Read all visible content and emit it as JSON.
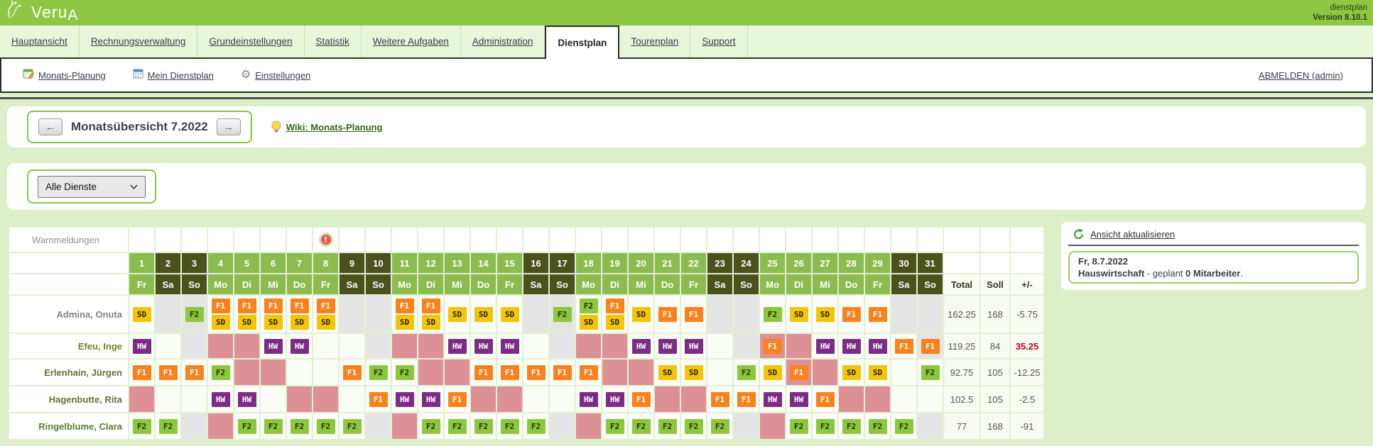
{
  "header": {
    "logo": "Veru",
    "logo_a": "A",
    "app_label": "dienstplan",
    "version": "Version 8.10.1"
  },
  "tabs": [
    {
      "label": "Hauptansicht",
      "active": false
    },
    {
      "label": "Rechnungsverwaltung",
      "active": false
    },
    {
      "label": "Grundeinstellungen",
      "active": false
    },
    {
      "label": "Statistik",
      "active": false
    },
    {
      "label": "Weitere Aufgaben",
      "active": false
    },
    {
      "label": "Administration",
      "active": false
    },
    {
      "label": "Dienstplan",
      "active": true
    },
    {
      "label": "Tourenplan",
      "active": false
    },
    {
      "label": "Support",
      "active": false
    }
  ],
  "subnav": {
    "items": [
      {
        "label": "Monats-Planung",
        "icon": "calendar-edit-icon"
      },
      {
        "label": "Mein Dienstplan",
        "icon": "calendar-icon"
      },
      {
        "label": "Einstellungen",
        "icon": "gear-icon"
      }
    ],
    "logout": "ABMELDEN (admin)"
  },
  "month_nav": {
    "title": "Monatsübersicht 7.2022",
    "prev_arrow": "←",
    "next_arrow": "→",
    "wiki_link": "Wiki: Monats-Planung"
  },
  "filter": {
    "selected": "Alle Dienste"
  },
  "roster": {
    "warn_label": "Warnmeldungen",
    "warning_day": 8,
    "warning_glyph": "!",
    "totals_headers": [
      "Total",
      "Soll",
      "+/-"
    ],
    "days": [
      {
        "num": "1",
        "dow": "Fr",
        "we": false
      },
      {
        "num": "2",
        "dow": "Sa",
        "we": true
      },
      {
        "num": "3",
        "dow": "So",
        "we": true
      },
      {
        "num": "4",
        "dow": "Mo",
        "we": false
      },
      {
        "num": "5",
        "dow": "Di",
        "we": false
      },
      {
        "num": "6",
        "dow": "Mi",
        "we": false
      },
      {
        "num": "7",
        "dow": "Do",
        "we": false
      },
      {
        "num": "8",
        "dow": "Fr",
        "we": false
      },
      {
        "num": "9",
        "dow": "Sa",
        "we": true
      },
      {
        "num": "10",
        "dow": "So",
        "we": true
      },
      {
        "num": "11",
        "dow": "Mo",
        "we": false
      },
      {
        "num": "12",
        "dow": "Di",
        "we": false
      },
      {
        "num": "13",
        "dow": "Mi",
        "we": false
      },
      {
        "num": "14",
        "dow": "Do",
        "we": false
      },
      {
        "num": "15",
        "dow": "Fr",
        "we": false
      },
      {
        "num": "16",
        "dow": "Sa",
        "we": true
      },
      {
        "num": "17",
        "dow": "So",
        "we": true
      },
      {
        "num": "18",
        "dow": "Mo",
        "we": false
      },
      {
        "num": "19",
        "dow": "Di",
        "we": false
      },
      {
        "num": "20",
        "dow": "Mi",
        "we": false
      },
      {
        "num": "21",
        "dow": "Do",
        "we": false
      },
      {
        "num": "22",
        "dow": "Fr",
        "we": false
      },
      {
        "num": "23",
        "dow": "Sa",
        "we": true
      },
      {
        "num": "24",
        "dow": "So",
        "we": true
      },
      {
        "num": "25",
        "dow": "Mo",
        "we": false
      },
      {
        "num": "26",
        "dow": "Di",
        "we": false
      },
      {
        "num": "27",
        "dow": "Mi",
        "we": false
      },
      {
        "num": "28",
        "dow": "Do",
        "we": false
      },
      {
        "num": "29",
        "dow": "Fr",
        "we": false
      },
      {
        "num": "30",
        "dow": "Sa",
        "we": true
      },
      {
        "num": "31",
        "dow": "So",
        "we": true
      }
    ],
    "shift_colors": {
      "SD": {
        "bg": "#f2c40c",
        "fg": "#2a2000"
      },
      "F1": {
        "bg": "#f8821f",
        "fg": "#ffffff"
      },
      "F2": {
        "bg": "#8dc63f",
        "fg": "#243300"
      },
      "HW": {
        "bg": "#7d2c86",
        "fg": "#ffffff"
      }
    },
    "cell_bg": {
      "w": "#fbfdf7",
      "g": "#e4e4e4",
      "p": "#dd9095"
    },
    "employees": [
      {
        "name": "Admina, Onuta",
        "name_color": "#85857b",
        "tall": true,
        "cells": [
          [
            "SD",
            "w"
          ],
          [
            "",
            "g"
          ],
          [
            "F2",
            "g"
          ],
          [
            "F1+SD",
            "w"
          ],
          [
            "F1+SD",
            "w"
          ],
          [
            "F1+SD",
            "w"
          ],
          [
            "F1+SD",
            "w"
          ],
          [
            "F1+SD",
            "w"
          ],
          [
            "",
            "g"
          ],
          [
            "",
            "g"
          ],
          [
            "F1+SD",
            "w"
          ],
          [
            "F1+SD",
            "w"
          ],
          [
            "SD",
            "w"
          ],
          [
            "SD",
            "w"
          ],
          [
            "SD",
            "w"
          ],
          [
            "",
            "g"
          ],
          [
            "F2",
            "g"
          ],
          [
            "F2+SD",
            "w"
          ],
          [
            "F1+SD",
            "w"
          ],
          [
            "SD",
            "w"
          ],
          [
            "F1",
            "w"
          ],
          [
            "F1",
            "w"
          ],
          [
            "",
            "g"
          ],
          [
            "",
            "g"
          ],
          [
            "F2",
            "w"
          ],
          [
            "SD",
            "w"
          ],
          [
            "SD",
            "w"
          ],
          [
            "F1",
            "w"
          ],
          [
            "F1",
            "w"
          ],
          [
            "",
            "g"
          ],
          [
            "",
            "g"
          ]
        ],
        "total": "162.25",
        "soll": "168",
        "diff": "-5.75",
        "diff_alert": false
      },
      {
        "name": "Efeu, Inge",
        "name_color": "#7c7c2e",
        "tall": false,
        "cells": [
          [
            "HW",
            "w"
          ],
          [
            "",
            "w"
          ],
          [
            "",
            "g"
          ],
          [
            "",
            "p"
          ],
          [
            "",
            "p"
          ],
          [
            "HW",
            "w"
          ],
          [
            "HW",
            "w"
          ],
          [
            "",
            "w"
          ],
          [
            "",
            "w"
          ],
          [
            "",
            "g"
          ],
          [
            "",
            "p"
          ],
          [
            "",
            "p"
          ],
          [
            "HW",
            "w"
          ],
          [
            "HW",
            "w"
          ],
          [
            "HW",
            "w"
          ],
          [
            "",
            "w"
          ],
          [
            "",
            "g"
          ],
          [
            "",
            "p"
          ],
          [
            "",
            "p"
          ],
          [
            "HW",
            "w"
          ],
          [
            "HW",
            "w"
          ],
          [
            "HW",
            "w"
          ],
          [
            "",
            "w"
          ],
          [
            "",
            "g"
          ],
          [
            "F1",
            "p"
          ],
          [
            "",
            "p"
          ],
          [
            "HW",
            "w"
          ],
          [
            "HW",
            "w"
          ],
          [
            "HW",
            "w"
          ],
          [
            "F1",
            "w"
          ],
          [
            "F1",
            "g"
          ]
        ],
        "total": "119.25",
        "soll": "84",
        "diff": "35.25",
        "diff_alert": true
      },
      {
        "name": "Erlenhain, Jürgen",
        "name_color": "#6d6d3c",
        "tall": false,
        "cells": [
          [
            "F1",
            "w"
          ],
          [
            "F1",
            "w"
          ],
          [
            "F1",
            "w"
          ],
          [
            "F2",
            "w"
          ],
          [
            "",
            "p"
          ],
          [
            "",
            "p"
          ],
          [
            "",
            "w"
          ],
          [
            "",
            "w"
          ],
          [
            "F1",
            "w"
          ],
          [
            "F2",
            "w"
          ],
          [
            "F2",
            "w"
          ],
          [
            "",
            "p"
          ],
          [
            "",
            "p"
          ],
          [
            "F1",
            "w"
          ],
          [
            "F1",
            "w"
          ],
          [
            "F1",
            "w"
          ],
          [
            "F1",
            "w"
          ],
          [
            "F1",
            "w"
          ],
          [
            "",
            "p"
          ],
          [
            "",
            "p"
          ],
          [
            "SD",
            "w"
          ],
          [
            "SD",
            "w"
          ],
          [
            "",
            "w"
          ],
          [
            "F2",
            "w"
          ],
          [
            "SD",
            "w"
          ],
          [
            "F1",
            "p"
          ],
          [
            "",
            "p"
          ],
          [
            "SD",
            "w"
          ],
          [
            "SD",
            "w"
          ],
          [
            "",
            "w"
          ],
          [
            "F2",
            "w"
          ]
        ],
        "total": "92.75",
        "soll": "105",
        "diff": "-12.25",
        "diff_alert": false
      },
      {
        "name": "Hagenbutte, Rita",
        "name_color": "#6d6d3c",
        "tall": false,
        "cells": [
          [
            "",
            "p"
          ],
          [
            "",
            "w"
          ],
          [
            "",
            "w"
          ],
          [
            "HW",
            "w"
          ],
          [
            "HW",
            "w"
          ],
          [
            "",
            "w"
          ],
          [
            "",
            "p"
          ],
          [
            "",
            "p"
          ],
          [
            "",
            "w"
          ],
          [
            "F1",
            "w"
          ],
          [
            "HW",
            "w"
          ],
          [
            "HW",
            "w"
          ],
          [
            "F1",
            "w"
          ],
          [
            "",
            "p"
          ],
          [
            "",
            "p"
          ],
          [
            "",
            "w"
          ],
          [
            "",
            "w"
          ],
          [
            "HW",
            "w"
          ],
          [
            "HW",
            "w"
          ],
          [
            "F1",
            "w"
          ],
          [
            "",
            "p"
          ],
          [
            "",
            "p"
          ],
          [
            "F1",
            "w"
          ],
          [
            "F1",
            "w"
          ],
          [
            "HW",
            "w"
          ],
          [
            "HW",
            "w"
          ],
          [
            "F1",
            "w"
          ],
          [
            "",
            "p"
          ],
          [
            "",
            "p"
          ],
          [
            "",
            "w"
          ],
          [
            "",
            "w"
          ]
        ],
        "total": "102.5",
        "soll": "105",
        "diff": "-2.5",
        "diff_alert": false
      },
      {
        "name": "Ringelblume, Clara",
        "name_color": "#5c7a33",
        "tall": false,
        "cells": [
          [
            "F2",
            "w"
          ],
          [
            "F2",
            "w"
          ],
          [
            "",
            "g"
          ],
          [
            "",
            "p"
          ],
          [
            "F2",
            "w"
          ],
          [
            "F2",
            "w"
          ],
          [
            "F2",
            "w"
          ],
          [
            "F2",
            "w"
          ],
          [
            "F2",
            "w"
          ],
          [
            "",
            "g"
          ],
          [
            "",
            "p"
          ],
          [
            "F2",
            "w"
          ],
          [
            "F2",
            "w"
          ],
          [
            "F2",
            "w"
          ],
          [
            "F2",
            "w"
          ],
          [
            "F2",
            "w"
          ],
          [
            "",
            "g"
          ],
          [
            "",
            "p"
          ],
          [
            "F2",
            "w"
          ],
          [
            "F2",
            "w"
          ],
          [
            "F2",
            "w"
          ],
          [
            "F2",
            "w"
          ],
          [
            "F2",
            "w"
          ],
          [
            "",
            "g"
          ],
          [
            "",
            "p"
          ],
          [
            "F2",
            "w"
          ],
          [
            "F2",
            "w"
          ],
          [
            "F2",
            "w"
          ],
          [
            "F2",
            "w"
          ],
          [
            "F2",
            "w"
          ],
          [
            "",
            "g"
          ]
        ],
        "total": "77",
        "soll": "168",
        "diff": "-91",
        "diff_alert": false
      }
    ]
  },
  "side_panel": {
    "refresh_link": "Ansicht aktualisieren",
    "info_date": "Fr, 8.7.2022",
    "info_bold1": "Hauswirtschaft",
    "info_mid": " - geplant ",
    "info_bold2": "0 Mitarbeiter",
    "info_end": "."
  }
}
